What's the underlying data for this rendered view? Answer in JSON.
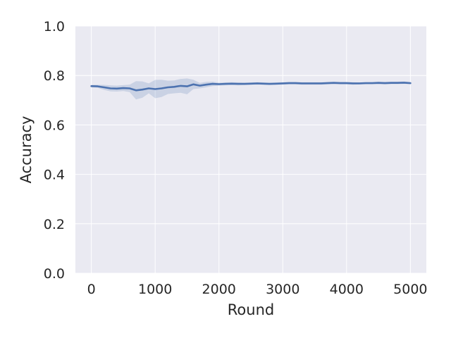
{
  "chart_data": {
    "type": "line",
    "title": "",
    "xlabel": "Round",
    "ylabel": "Accuracy",
    "xlim": [
      -250,
      5250
    ],
    "ylim": [
      0,
      1.0
    ],
    "xticks": [
      0,
      1000,
      2000,
      3000,
      4000,
      5000
    ],
    "yticks": [
      0.0,
      0.2,
      0.4,
      0.6,
      0.8,
      1.0
    ],
    "xtick_labels": [
      "0",
      "1000",
      "2000",
      "3000",
      "4000",
      "5000"
    ],
    "ytick_labels": [
      "0.0",
      "0.2",
      "0.4",
      "0.6",
      "0.8",
      "1.0"
    ],
    "grid": true,
    "series": [
      {
        "color": "#4c72b0",
        "band_color": "#4c72b0",
        "x": [
          0,
          100,
          200,
          300,
          400,
          500,
          600,
          700,
          800,
          900,
          1000,
          1100,
          1200,
          1300,
          1400,
          1500,
          1600,
          1700,
          1800,
          1900,
          2000,
          2100,
          2200,
          2300,
          2400,
          2500,
          2600,
          2700,
          2800,
          2900,
          3000,
          3100,
          3200,
          3300,
          3400,
          3500,
          3600,
          3700,
          3800,
          3900,
          4000,
          4100,
          4200,
          4300,
          4400,
          4500,
          4600,
          4700,
          4800,
          4900,
          5000
        ],
        "y": [
          0.757,
          0.756,
          0.752,
          0.748,
          0.747,
          0.749,
          0.748,
          0.74,
          0.743,
          0.748,
          0.745,
          0.748,
          0.752,
          0.754,
          0.758,
          0.756,
          0.764,
          0.759,
          0.763,
          0.766,
          0.765,
          0.766,
          0.767,
          0.766,
          0.766,
          0.767,
          0.768,
          0.767,
          0.766,
          0.767,
          0.768,
          0.769,
          0.769,
          0.768,
          0.768,
          0.768,
          0.768,
          0.769,
          0.77,
          0.769,
          0.769,
          0.768,
          0.768,
          0.769,
          0.769,
          0.77,
          0.769,
          0.77,
          0.77,
          0.771,
          0.769
        ],
        "lower": [
          0.752,
          0.75,
          0.742,
          0.736,
          0.735,
          0.737,
          0.733,
          0.703,
          0.71,
          0.728,
          0.708,
          0.713,
          0.725,
          0.728,
          0.73,
          0.724,
          0.745,
          0.748,
          0.752,
          0.757,
          0.759,
          0.76,
          0.761,
          0.76,
          0.761,
          0.762,
          0.763,
          0.762,
          0.761,
          0.762,
          0.763,
          0.764,
          0.764,
          0.763,
          0.763,
          0.763,
          0.763,
          0.764,
          0.765,
          0.764,
          0.764,
          0.763,
          0.764,
          0.765,
          0.765,
          0.765,
          0.764,
          0.765,
          0.765,
          0.766,
          0.765
        ],
        "upper": [
          0.762,
          0.762,
          0.762,
          0.76,
          0.759,
          0.761,
          0.763,
          0.777,
          0.776,
          0.768,
          0.782,
          0.783,
          0.779,
          0.78,
          0.786,
          0.788,
          0.783,
          0.77,
          0.774,
          0.775,
          0.771,
          0.772,
          0.773,
          0.772,
          0.771,
          0.772,
          0.773,
          0.772,
          0.771,
          0.772,
          0.773,
          0.774,
          0.774,
          0.773,
          0.773,
          0.773,
          0.773,
          0.774,
          0.775,
          0.774,
          0.774,
          0.773,
          0.772,
          0.773,
          0.773,
          0.775,
          0.774,
          0.775,
          0.775,
          0.776,
          0.773
        ]
      }
    ]
  }
}
